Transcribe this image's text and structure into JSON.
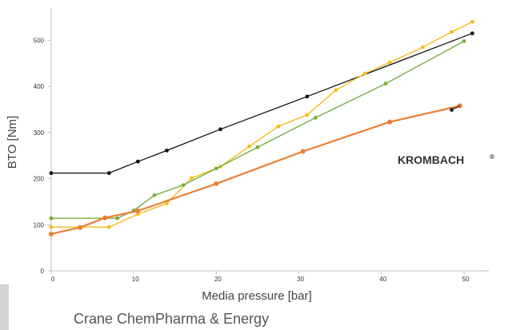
{
  "chart_data": {
    "type": "line",
    "xlabel": "Media pressure [bar]",
    "ylabel": "BTO [Nm]",
    "xlim": [
      0,
      53
    ],
    "ylim": [
      0,
      570
    ],
    "x_ticks": [
      0,
      10,
      20,
      30,
      40,
      50
    ],
    "y_ticks": [
      0,
      100,
      200,
      300,
      400,
      500
    ],
    "grid": false,
    "series": [
      {
        "color": "#111111",
        "x": [
          0,
          7,
          10.5,
          14,
          20.5,
          31,
          51
        ],
        "y": [
          212,
          212,
          237,
          261,
          307,
          378,
          515
        ]
      },
      {
        "color": "#f5bd1b",
        "x": [
          0,
          7,
          10.5,
          14,
          17,
          20.5,
          24,
          27.5,
          31,
          34.5,
          38,
          41,
          45,
          48.5,
          51
        ],
        "y": [
          95,
          95,
          123,
          146,
          201,
          226,
          270,
          313,
          338,
          392,
          428,
          452,
          485,
          518,
          540
        ]
      },
      {
        "color": "#77ad3c",
        "x": [
          0,
          6.5,
          8,
          10,
          12.5,
          16,
          20,
          25,
          32,
          40.5,
          50
        ],
        "y": [
          114,
          114,
          114,
          131,
          164,
          186,
          222,
          268,
          332,
          406,
          498
        ]
      },
      {
        "color": "#ec7e33",
        "x": [
          0,
          3.5,
          6.5,
          10.5,
          20,
          30.5,
          41,
          49.5
        ],
        "y": [
          80,
          94,
          115,
          130,
          189,
          259,
          323,
          358
        ]
      }
    ],
    "annotations": [
      {
        "text": "KROMBACH",
        "superscript": "®",
        "target_series": 3,
        "marker_x": 48.5,
        "marker_y": 349
      }
    ]
  },
  "footer": {
    "caption": "Crane ChemPharma & Energy"
  }
}
